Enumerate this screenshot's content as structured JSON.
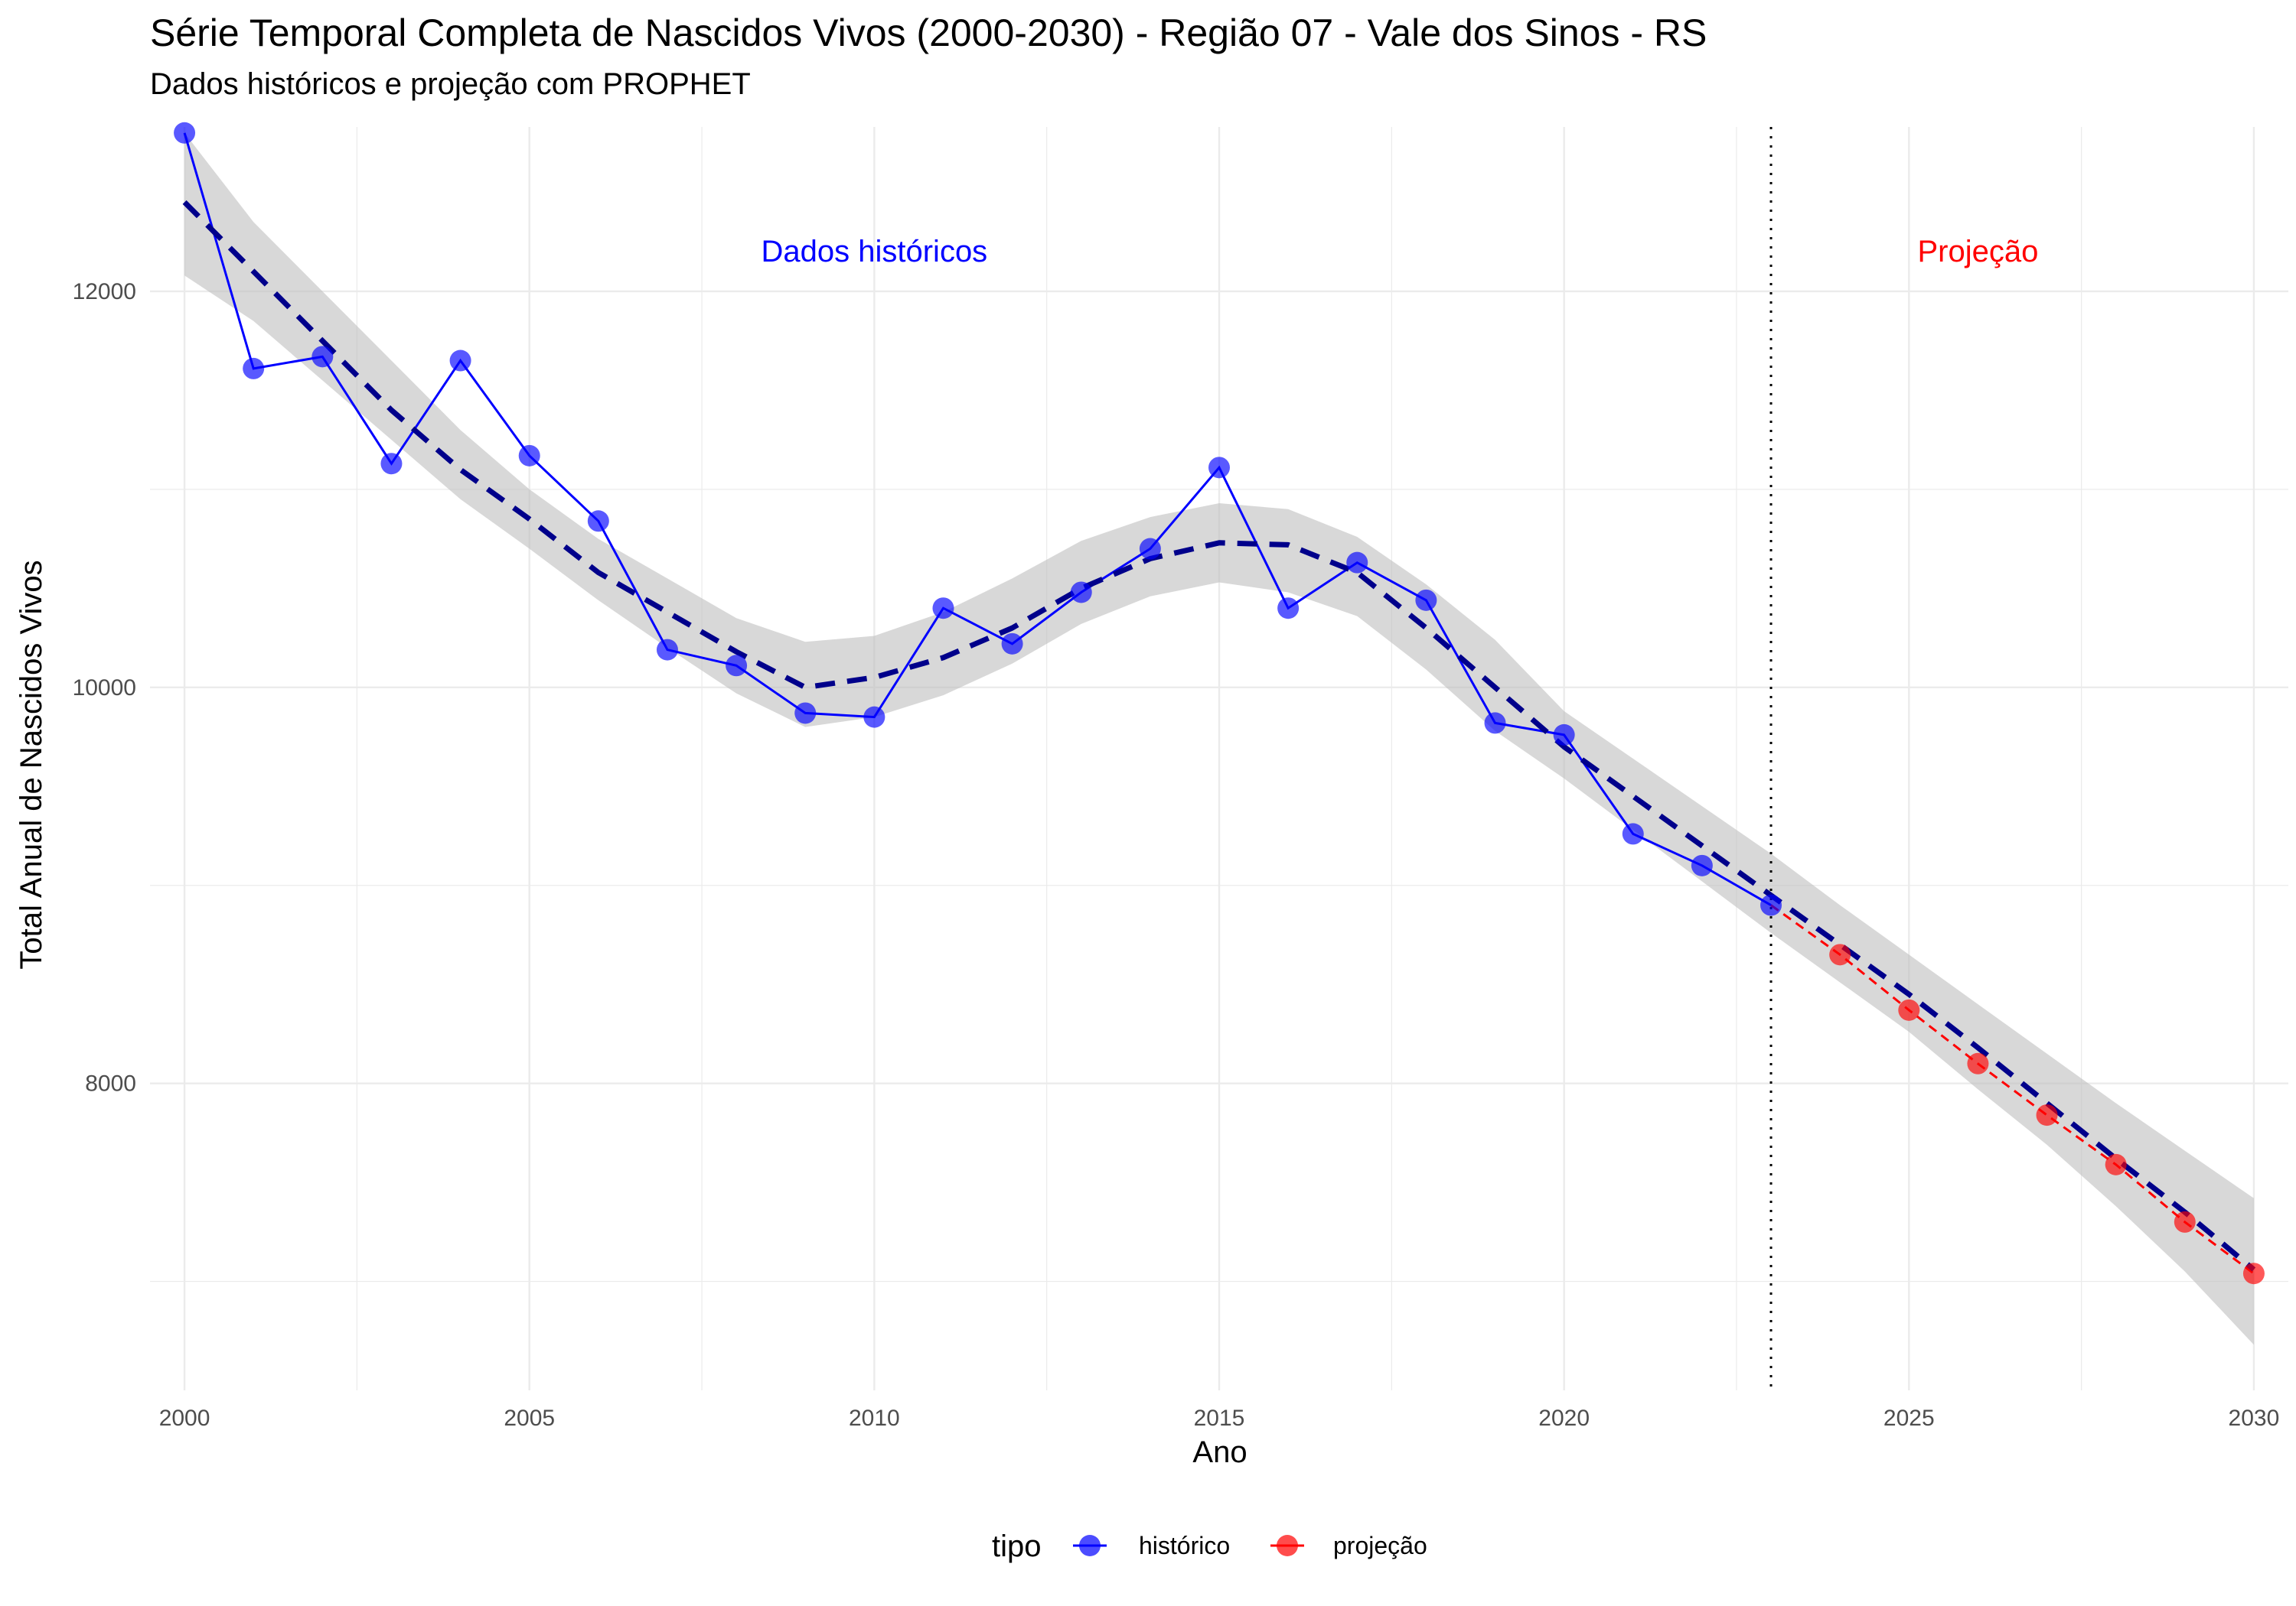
{
  "chart_data": {
    "type": "line",
    "title": "Série Temporal Completa de Nascidos Vivos (2000-2030) -  Região 07 - Vale dos Sinos - RS",
    "subtitle": "Dados históricos e projeção com PROPHET",
    "xlabel": "Ano",
    "ylabel": "Total Anual de Nascidos Vivos",
    "xlim": [
      1999.5,
      2030.5
    ],
    "ylim": [
      6450,
      12830
    ],
    "x_ticks": [
      2000,
      2005,
      2010,
      2015,
      2020,
      2025,
      2030
    ],
    "y_ticks": [
      8000,
      10000,
      12000
    ],
    "grid": true,
    "legend": {
      "title": "tipo",
      "position": "bottom",
      "items": [
        {
          "label": "histórico",
          "color": "#0000FF"
        },
        {
          "label": "projeção",
          "color": "#FF0000"
        }
      ]
    },
    "annotations": [
      {
        "text": "Dados históricos",
        "x": 2010,
        "y": 12150,
        "color": "#0000FF"
      },
      {
        "text": "Projeção",
        "x": 2026,
        "y": 12150,
        "color": "#FF0000"
      }
    ],
    "vline": {
      "x": 2023,
      "style": "dotted"
    },
    "series": [
      {
        "name": "histórico",
        "color": "#0000FF",
        "x": [
          2000,
          2001,
          2002,
          2003,
          2004,
          2005,
          2006,
          2007,
          2008,
          2009,
          2010,
          2011,
          2012,
          2013,
          2014,
          2015,
          2016,
          2017,
          2018,
          2019,
          2020,
          2021,
          2022,
          2023
        ],
        "values": [
          12800,
          11610,
          11670,
          11130,
          11650,
          11170,
          10840,
          10190,
          10110,
          9870,
          9850,
          10400,
          10220,
          10480,
          10700,
          11110,
          10400,
          10630,
          10440,
          9820,
          9760,
          9260,
          9100,
          8900
        ]
      },
      {
        "name": "projeção",
        "color": "#FF0000",
        "x": [
          2023,
          2024,
          2025,
          2026,
          2027,
          2028,
          2029,
          2030
        ],
        "values": [
          8900,
          8650,
          8370,
          8100,
          7840,
          7590,
          7300,
          7040
        ]
      }
    ],
    "trend": {
      "style": "dashed",
      "color": "#00008B",
      "x": [
        2000,
        2001,
        2002,
        2003,
        2004,
        2005,
        2006,
        2007,
        2008,
        2009,
        2010,
        2011,
        2012,
        2013,
        2014,
        2015,
        2016,
        2017,
        2018,
        2019,
        2020,
        2021,
        2022,
        2023,
        2024,
        2025,
        2026,
        2027,
        2028,
        2029,
        2030
      ],
      "values": [
        12450,
        12100,
        11750,
        11400,
        11100,
        10850,
        10580,
        10380,
        10180,
        10000,
        10050,
        10150,
        10300,
        10500,
        10650,
        10730,
        10720,
        10580,
        10300,
        10000,
        9700,
        9450,
        9200,
        8950,
        8700,
        8450,
        8180,
        7900,
        7620,
        7350,
        7060
      ]
    },
    "band": {
      "color": "#BEBEBE",
      "x": [
        2000,
        2001,
        2002,
        2003,
        2004,
        2005,
        2006,
        2007,
        2008,
        2009,
        2010,
        2011,
        2012,
        2013,
        2014,
        2015,
        2016,
        2017,
        2018,
        2019,
        2020,
        2021,
        2022,
        2023,
        2024,
        2025,
        2026,
        2027,
        2028,
        2029,
        2030
      ],
      "lower": [
        12080,
        11850,
        11550,
        11250,
        10950,
        10700,
        10440,
        10200,
        9970,
        9800,
        9850,
        9960,
        10120,
        10320,
        10460,
        10530,
        10480,
        10360,
        10090,
        9780,
        9540,
        9280,
        9020,
        8760,
        8510,
        8260,
        7970,
        7690,
        7380,
        7050,
        6680
      ],
      "upper": [
        12800,
        12350,
        12000,
        11650,
        11300,
        11000,
        10750,
        10550,
        10350,
        10230,
        10260,
        10380,
        10550,
        10740,
        10860,
        10930,
        10900,
        10760,
        10520,
        10240,
        9880,
        9640,
        9400,
        9160,
        8900,
        8650,
        8400,
        8150,
        7900,
        7660,
        7420
      ]
    }
  }
}
